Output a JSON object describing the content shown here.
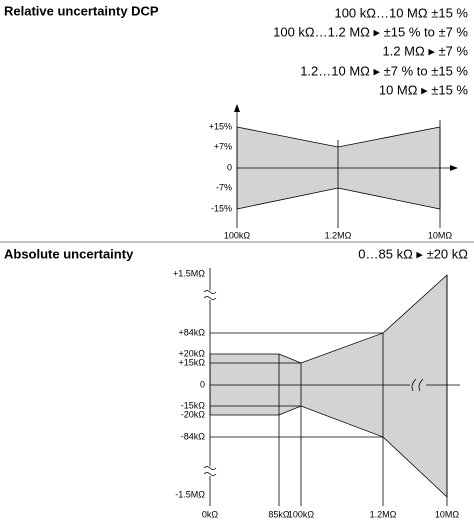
{
  "sections": [
    {
      "title": "Relative uncertainty DCP",
      "specs": [
        "100 kΩ…10 MΩ ±15 %",
        "100 kΩ…1.2 MΩ ▸ ±15 % to ±7 %",
        "1.2 MΩ ▸ ±7 %",
        "1.2…10 MΩ ▸ ±7 % to ±15 %",
        "10 MΩ ▸ ±15 %"
      ],
      "diagram": {
        "y_labels": [
          "+15%",
          "+7%",
          "0",
          "-7%",
          "-15%"
        ],
        "x_labels": [
          "100kΩ",
          "1.2MΩ",
          "10MΩ"
        ]
      }
    },
    {
      "title": "Absolute uncertainty",
      "specs": [
        "0…85 kΩ ▸ ±20 kΩ"
      ],
      "diagram": {
        "y_labels": [
          "+1.5MΩ",
          "+84kΩ",
          "+20kΩ",
          "+15kΩ",
          "0",
          "-15kΩ",
          "-20kΩ",
          "-84kΩ",
          "-1.5MΩ"
        ],
        "x_labels": [
          "0kΩ",
          "85kΩ",
          "100kΩ",
          "1.2MΩ",
          "10MΩ"
        ]
      }
    }
  ]
}
